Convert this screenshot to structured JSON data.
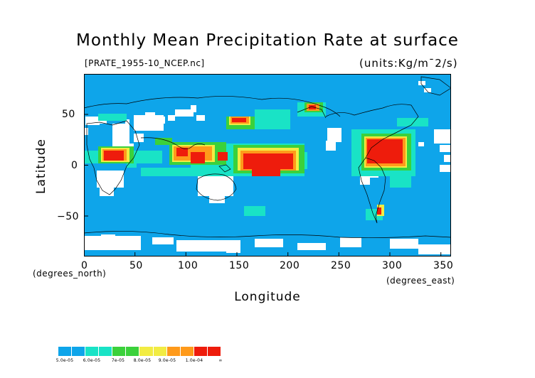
{
  "title": "Monthly Mean Precipitation Rate at surface",
  "file_label": "[PRATE_1955-10_NCEP.nc]",
  "units_label": "(units:Kg/m¯2/s)",
  "axes": {
    "x_title": "Longitude",
    "y_title": "Latitude",
    "x_unit": "(degrees_east)",
    "y_unit": "(degrees_north)",
    "x_ticks": [
      "0",
      "50",
      "100",
      "150",
      "200",
      "250",
      "300",
      "350"
    ],
    "y_ticks": [
      "50",
      "0",
      "−50"
    ],
    "x_range": [
      0,
      360
    ],
    "y_range": [
      -90,
      90
    ]
  },
  "colors": {
    "background": "#ffffff",
    "ocean_base": "#0ea5ea",
    "cyan": "#19e3c6",
    "green": "#3bd13b",
    "yellow": "#f2ec43",
    "orange": "#ff9a1a",
    "red": "#ee1c0c",
    "coast": "#000000"
  },
  "legend": {
    "swatch_colors": [
      "#0ea5ea",
      "#0ea5ea",
      "#19e3c6",
      "#19e3c6",
      "#3bd13b",
      "#3bd13b",
      "#f2ec43",
      "#f2ec43",
      "#ff9a1a",
      "#ff9a1a",
      "#ee1c0c",
      "#ee1c0c"
    ],
    "labels": [
      "5.0e-05",
      "6.0e-05",
      "7e-05",
      "8.0e-05",
      "9.0e-05",
      "1.0e-04",
      "∞"
    ]
  }
}
